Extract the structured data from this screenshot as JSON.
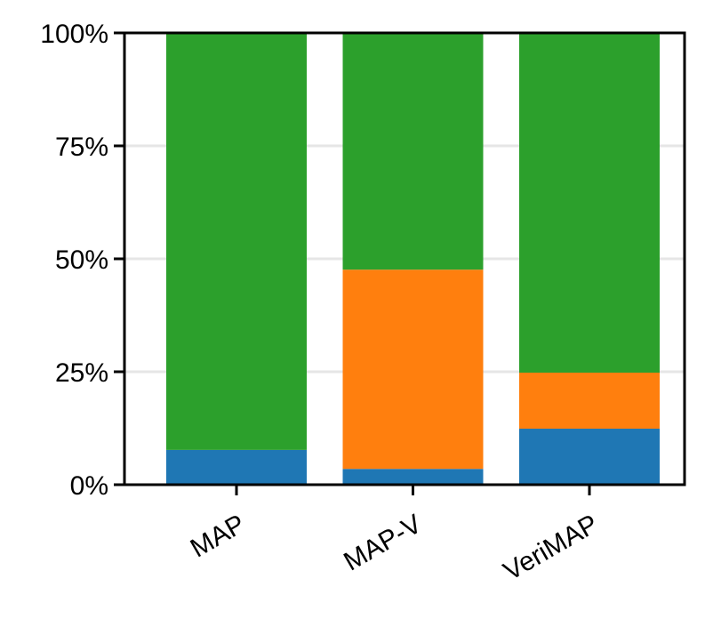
{
  "chart_data": {
    "type": "stacked_bar",
    "categories": [
      "MAP",
      "MAP-V",
      "VeriMAP"
    ],
    "series": [
      {
        "color": "#1f77b4",
        "values": [
          7.7,
          3.5,
          12.4
        ]
      },
      {
        "color": "#ff7f0e",
        "values": [
          0,
          44.1,
          12.4
        ]
      },
      {
        "color": "#2ca02c",
        "values": [
          92.3,
          52.4,
          75.2
        ]
      }
    ],
    "ylim": [
      0,
      100
    ],
    "yticks": [
      {
        "value": 0,
        "label": "0%"
      },
      {
        "value": 25,
        "label": "25%"
      },
      {
        "value": 50,
        "label": "50%"
      },
      {
        "value": 75,
        "label": "75%"
      },
      {
        "value": 100,
        "label": "100%"
      }
    ],
    "grid": true
  }
}
